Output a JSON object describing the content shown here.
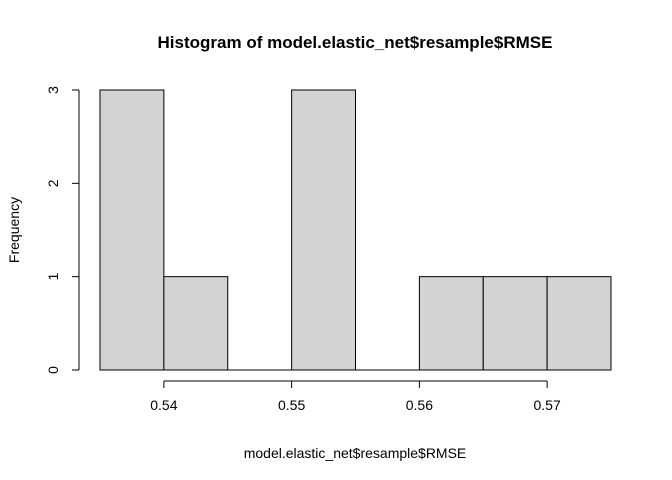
{
  "chart_data": {
    "type": "bar",
    "subtype": "histogram",
    "title": "Histogram of model.elastic_net$resample$RMSE",
    "xlabel": "model.elastic_net$resample$RMSE",
    "ylabel": "Frequency",
    "bins": [
      {
        "start": 0.535,
        "end": 0.54,
        "count": 3
      },
      {
        "start": 0.54,
        "end": 0.545,
        "count": 1
      },
      {
        "start": 0.545,
        "end": 0.55,
        "count": 0
      },
      {
        "start": 0.55,
        "end": 0.555,
        "count": 3
      },
      {
        "start": 0.555,
        "end": 0.56,
        "count": 0
      },
      {
        "start": 0.56,
        "end": 0.565,
        "count": 1
      },
      {
        "start": 0.565,
        "end": 0.57,
        "count": 1
      },
      {
        "start": 0.57,
        "end": 0.575,
        "count": 1
      }
    ],
    "xlim": [
      0.535,
      0.575
    ],
    "ylim": [
      0,
      3
    ],
    "x_ticks": [
      0.54,
      0.55,
      0.56,
      0.57
    ],
    "x_tick_labels": [
      "0.54",
      "0.55",
      "0.56",
      "0.57"
    ],
    "y_ticks": [
      0,
      1,
      2,
      3
    ],
    "y_tick_labels": [
      "0",
      "1",
      "2",
      "3"
    ],
    "bar_fill": "#d3d3d3",
    "bar_stroke": "#000000",
    "grid": false,
    "legend": "none"
  }
}
